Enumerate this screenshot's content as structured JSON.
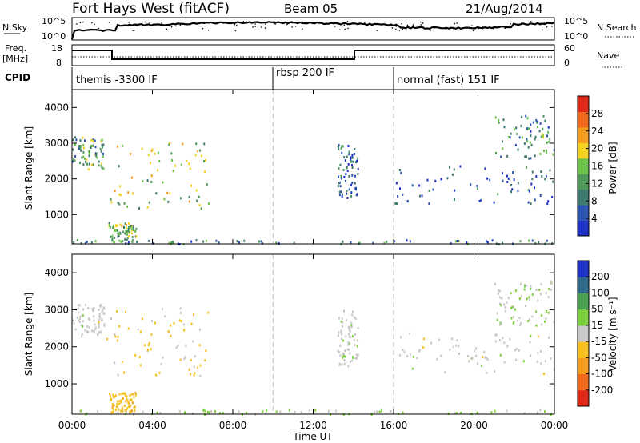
{
  "header": {
    "title": "Fort Hays West (fitACF)",
    "beam": "Beam 05",
    "date": "21/Aug/2014"
  },
  "noise_panel": {
    "left_label": "N.Sky",
    "right_label": "N.Search",
    "left_ticks": [
      "10^5",
      "10^0"
    ],
    "right_ticks": [
      "10^5",
      "10^0"
    ]
  },
  "freq_panel": {
    "left_label_1": "Freq.",
    "left_label_2": "[MHz]",
    "left_ticks": [
      "18",
      "8"
    ],
    "right_label": "Nave",
    "right_ticks": [
      "60",
      "0"
    ]
  },
  "cpid_panel": {
    "label": "CPID",
    "segments": [
      "themis -3300 IF",
      "rbsp 200 IF",
      "normal (fast) 151 IF"
    ]
  },
  "colors": {
    "power": [
      "#1f32c8",
      "#2b55b0",
      "#3f7a70",
      "#4f9a5a",
      "#6cc24a",
      "#f2d21f",
      "#f39c1d",
      "#ef6a1b",
      "#e02818"
    ],
    "velocity": [
      "#1f32c8",
      "#2f6a8a",
      "#49a04e",
      "#7ccf3f",
      "#c8c8c8",
      "#f5c020",
      "#f39c1d",
      "#ef6a1b",
      "#e02818"
    ],
    "grid_dash": "#bbbbbb"
  },
  "chart_data": [
    {
      "type": "heatmap",
      "title": "",
      "xlabel": "Time UT",
      "ylabel": "Slant Range [km]",
      "x_ticks": [
        "00:00",
        "04:00",
        "08:00",
        "12:00",
        "16:00",
        "20:00",
        "00:00"
      ],
      "xlim_hours": [
        0,
        24
      ],
      "y_ticks": [
        1000,
        2000,
        3000,
        4000
      ],
      "ylim": [
        180,
        4500
      ],
      "colorbar": {
        "label": "Power [dB]",
        "ticks": [
          "4",
          "8",
          "12",
          "16",
          "20",
          "24",
          "28"
        ],
        "range": [
          0,
          30
        ]
      },
      "mode_boundaries_hours": [
        10,
        16
      ],
      "echo_regions": [
        {
          "t0": 0.0,
          "t1": 1.6,
          "r0": 2300,
          "r1": 3200,
          "value": 11
        },
        {
          "t0": 1.7,
          "t1": 6.8,
          "r0": 1200,
          "r1": 3100,
          "value": 16
        },
        {
          "t0": 1.8,
          "t1": 3.2,
          "r0": 250,
          "r1": 800,
          "value": 14
        },
        {
          "t0": 13.2,
          "t1": 14.2,
          "r0": 1500,
          "r1": 3000,
          "value": 6
        },
        {
          "t0": 16.0,
          "t1": 24.0,
          "r0": 1300,
          "r1": 2400,
          "value": 5
        },
        {
          "t0": 21.0,
          "t1": 24.0,
          "r0": 2600,
          "r1": 3800,
          "value": 10
        },
        {
          "t0": 0.0,
          "t1": 24.0,
          "r0": 200,
          "r1": 320,
          "value": 8
        }
      ]
    },
    {
      "type": "heatmap",
      "title": "",
      "xlabel": "Time UT",
      "ylabel": "Slant Range [km]",
      "x_ticks": [
        "00:00",
        "04:00",
        "08:00",
        "12:00",
        "16:00",
        "20:00",
        "00:00"
      ],
      "xlim_hours": [
        0,
        24
      ],
      "y_ticks": [
        1000,
        2000,
        3000,
        4000
      ],
      "ylim": [
        180,
        4500
      ],
      "colorbar": {
        "label": "Velocity [m s⁻¹]",
        "ticks": [
          "200",
          "100",
          "50",
          "15",
          "-15",
          "-50",
          "-100",
          "-200"
        ],
        "range": [
          -250,
          250
        ]
      },
      "mode_boundaries_hours": [
        10,
        16
      ],
      "echo_regions": [
        {
          "t0": 0.0,
          "t1": 1.6,
          "r0": 2300,
          "r1": 3200,
          "value": 0
        },
        {
          "t0": 1.7,
          "t1": 6.8,
          "r0": 1200,
          "r1": 3100,
          "value": -40
        },
        {
          "t0": 1.8,
          "t1": 3.2,
          "r0": 250,
          "r1": 800,
          "value": -60
        },
        {
          "t0": 13.2,
          "t1": 14.2,
          "r0": 1500,
          "r1": 3000,
          "value": 10
        },
        {
          "t0": 16.0,
          "t1": 24.0,
          "r0": 1300,
          "r1": 2400,
          "value": 0
        },
        {
          "t0": 21.0,
          "t1": 24.0,
          "r0": 2600,
          "r1": 3800,
          "value": 20
        },
        {
          "t0": 0.0,
          "t1": 24.0,
          "r0": 200,
          "r1": 320,
          "value": 30
        }
      ]
    }
  ]
}
